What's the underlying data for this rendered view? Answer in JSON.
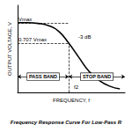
{
  "chart_data": {
    "type": "line",
    "title": "Frequency Response Curve For Low-Pass R",
    "x_label": "FREQUENCY, f",
    "y_label": "OUTPUT VOLTAGE, V",
    "x": [
      0,
      1,
      2,
      3,
      4,
      5,
      6,
      7,
      8,
      9,
      10
    ],
    "values": [
      1,
      1,
      0.99,
      0.96,
      0.88,
      0.707,
      0.5,
      0.3,
      0.17,
      0.09,
      0.05
    ],
    "color": "#000000",
    "xlim": [
      0,
      10.5
    ],
    "ylim": [
      0,
      1.25
    ],
    "tick_labels": false,
    "grid": false,
    "reference_lines": [
      {
        "axis": "y",
        "value": 1,
        "label": "Vmax"
      },
      {
        "axis": "y",
        "value": 0.707,
        "label": "0.707 Vmax"
      },
      {
        "axis": "x",
        "value": 5,
        "label": "f2"
      }
    ],
    "annotations": [
      {
        "text": "-3 dB",
        "x": 5,
        "y": 0.707
      }
    ],
    "bands": [
      {
        "label": "PASS BAND",
        "from": 0,
        "to": 5
      },
      {
        "label": "STOP BAND",
        "from": 5,
        "to": 10.5
      }
    ]
  }
}
